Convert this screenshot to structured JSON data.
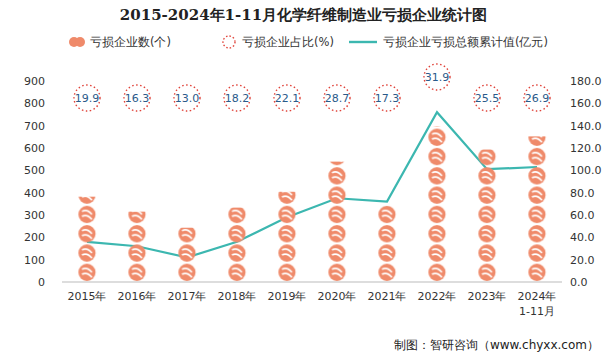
{
  "chart_data": {
    "type": "bar",
    "title": "2015-2024年1-11月化学纤维制造业亏损企业统计图",
    "categories": [
      "2015年",
      "2016年",
      "2017年",
      "2018年",
      "2019年",
      "2020年",
      "2021年",
      "2022年",
      "2023年",
      "2024年\n1-11月"
    ],
    "series": [
      {
        "name": "亏损企业数(个)",
        "type": "bar",
        "color": "#ef8a6a",
        "marker": "circle",
        "values": [
          382,
          315,
          243,
          333,
          404,
          539,
          342,
          697,
          593,
          652
        ]
      },
      {
        "name": "亏损企业占比(%)",
        "type": "annotation",
        "color": "#e0433a",
        "marker": "circle",
        "line_style": "dotted",
        "values": [
          19.9,
          16.3,
          13.0,
          18.2,
          22.1,
          28.7,
          17.3,
          31.9,
          25.5,
          26.9
        ],
        "value_labels": [
          "19.9",
          "16.3",
          "13.0",
          "18.2",
          "22.1",
          "28.7",
          "17.3",
          "31.9",
          "25.5",
          "26.9"
        ]
      },
      {
        "name": "亏损企业亏损总额累计值(亿元)",
        "type": "line",
        "color": "#3cb7b0",
        "axis": "y2",
        "values": [
          36,
          32,
          22,
          36,
          58,
          75,
          72,
          152,
          101,
          103
        ]
      }
    ],
    "ylim": [
      0,
      900
    ],
    "yticks": [
      0,
      100,
      200,
      300,
      400,
      500,
      600,
      700,
      800,
      900
    ],
    "y2lim": [
      0,
      180
    ],
    "y2ticks": [
      {
        "value": 0,
        "label": "0.0"
      },
      {
        "value": 20,
        "label": "20.0"
      },
      {
        "value": 40,
        "label": "40.0"
      },
      {
        "value": 60,
        "label": "60.0"
      },
      {
        "value": 80,
        "label": "80.0"
      },
      {
        "value": 100,
        "label": "100.0"
      },
      {
        "value": 120,
        "label": "120.0"
      },
      {
        "value": 140,
        "label": "140.0"
      },
      {
        "value": 160,
        "label": "160.0"
      },
      {
        "value": 180,
        "label": "180.0"
      }
    ],
    "grid": false,
    "legend": "top",
    "annotations": [
      "制图：智研咨询（www.chyxx.com）"
    ]
  }
}
